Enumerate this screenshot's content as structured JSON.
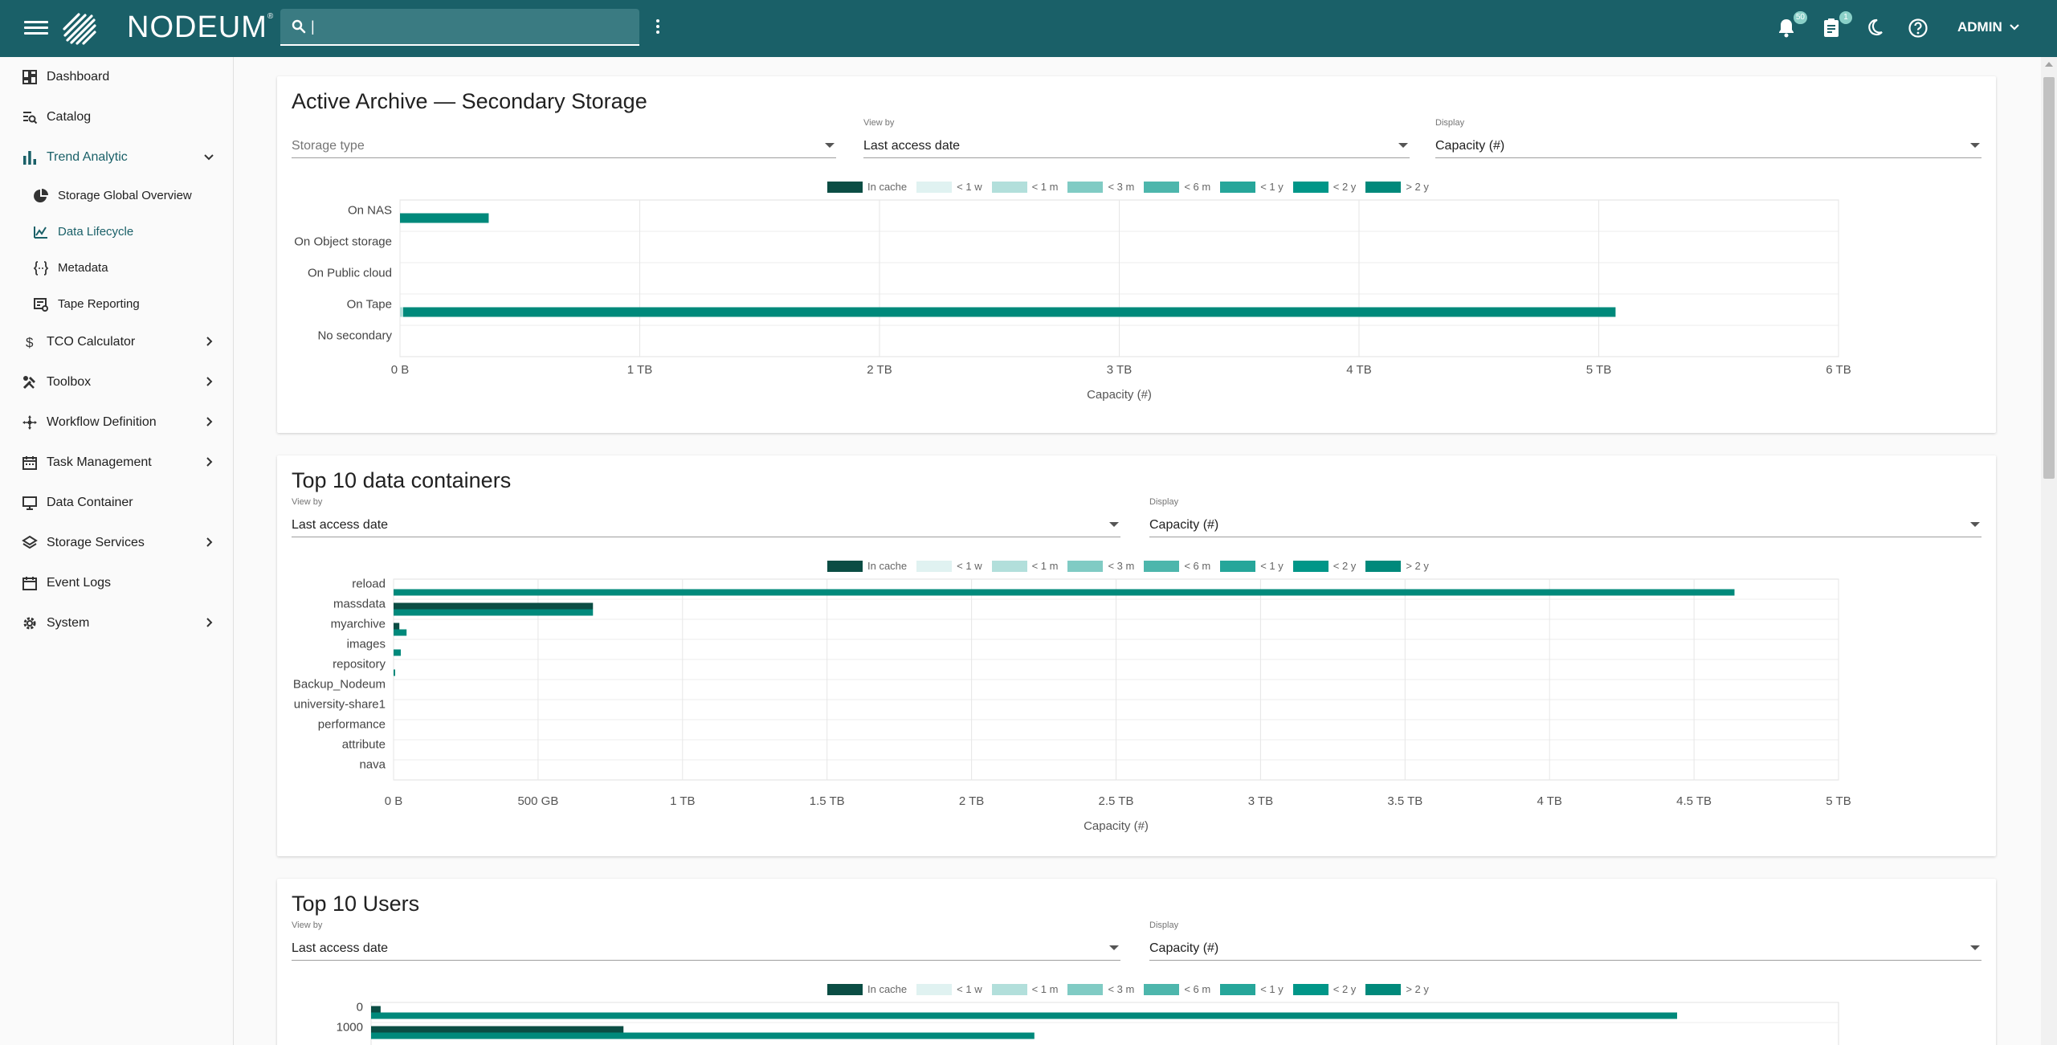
{
  "app": {
    "logo": "NODEUM",
    "logo_mark": "®"
  },
  "search": {
    "value": "",
    "placeholder": ""
  },
  "notifications": {
    "count": "50"
  },
  "tasks": {
    "count": "1"
  },
  "user": {
    "name": "ADMIN"
  },
  "sidebar": {
    "items": [
      {
        "label": "Dashboard"
      },
      {
        "label": "Catalog"
      },
      {
        "label": "Trend Analytic"
      },
      {
        "label": "TCO Calculator"
      },
      {
        "label": "Toolbox"
      },
      {
        "label": "Workflow Definition"
      },
      {
        "label": "Task Management"
      },
      {
        "label": "Data Container"
      },
      {
        "label": "Storage Services"
      },
      {
        "label": "Event Logs"
      },
      {
        "label": "System"
      }
    ],
    "subitems": [
      {
        "label": "Storage Global Overview"
      },
      {
        "label": "Data Lifecycle"
      },
      {
        "label": "Metadata"
      },
      {
        "label": "Tape Reporting"
      }
    ]
  },
  "legend": {
    "items": [
      "In cache",
      "< 1 w",
      "< 1 m",
      "< 3 m",
      "< 6 m",
      "< 1 y",
      "< 2 y",
      "> 2 y"
    ],
    "colors": [
      "#0b4d44",
      "#e0f2f1",
      "#b2dfdb",
      "#80cbc4",
      "#4db6ac",
      "#26a69a",
      "#009688",
      "#00897b"
    ]
  },
  "card1": {
    "title": "Active Archive — Secondary Storage",
    "storage_type": {
      "label": "",
      "value": "Storage type"
    },
    "view_by": {
      "label": "View by",
      "value": "Last access date"
    },
    "display": {
      "label": "Display",
      "value": "Capacity (#)"
    }
  },
  "card2": {
    "title": "Top 10 data containers",
    "view_by": {
      "label": "View by",
      "value": "Last access date"
    },
    "display": {
      "label": "Display",
      "value": "Capacity (#)"
    }
  },
  "card3": {
    "title": "Top 10 Users",
    "view_by": {
      "label": "View by",
      "value": "Last access date"
    },
    "display": {
      "label": "Display",
      "value": "Capacity (#)"
    }
  },
  "chart_data": [
    {
      "type": "bar",
      "orientation": "horizontal",
      "categories": [
        "On NAS",
        "On Object storage",
        "On Public cloud",
        "On Tape",
        "No secondary"
      ],
      "xlabel": "Capacity (#)",
      "xticks": [
        "0 B",
        "1 TB",
        "2 TB",
        "3 TB",
        "4 TB",
        "5 TB",
        "6 TB"
      ],
      "xlim": [
        0,
        6
      ],
      "unit": "TB",
      "series": [
        {
          "name": "In cache",
          "values": [
            0,
            0,
            0,
            0,
            0
          ]
        },
        {
          "name": "> 2 y",
          "values": [
            0.37,
            0,
            0,
            5.07,
            0
          ]
        }
      ]
    },
    {
      "type": "bar",
      "orientation": "horizontal",
      "categories": [
        "reload",
        "massdata",
        "myarchive",
        "images",
        "repository",
        "Backup_Nodeum",
        "university-share1",
        "performance",
        "attribute",
        "nava"
      ],
      "xlabel": "Capacity (#)",
      "xticks": [
        "0 B",
        "500 GB",
        "1 TB",
        "1.5 TB",
        "2 TB",
        "2.5 TB",
        "3 TB",
        "3.5 TB",
        "4 TB",
        "4.5 TB",
        "5 TB"
      ],
      "xlim": [
        0,
        5
      ],
      "unit": "TB",
      "series": [
        {
          "name": "In cache",
          "values": [
            0,
            0.69,
            0.02,
            0,
            0,
            0,
            0,
            0,
            0,
            0
          ]
        },
        {
          "name": "> 2 y",
          "values": [
            4.64,
            0.69,
            0.045,
            0.025,
            0.005,
            0,
            0,
            0,
            0,
            0
          ]
        }
      ]
    },
    {
      "type": "bar",
      "orientation": "horizontal",
      "categories": [
        "0",
        "1000"
      ],
      "xlabel": "",
      "xticks": [],
      "xlim": [
        0,
        1
      ],
      "unit": "",
      "series": [
        {
          "name": "In cache",
          "values": [
            0.0065,
            0.172
          ]
        },
        {
          "name": "> 2 y",
          "values": [
            0.89,
            0.452
          ]
        }
      ]
    }
  ]
}
